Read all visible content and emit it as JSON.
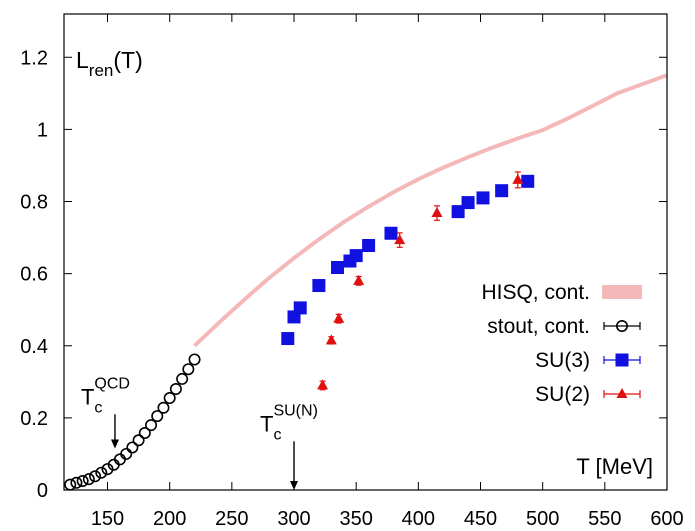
{
  "chart_data": {
    "type": "scatter",
    "title": "",
    "xlabel": "T [MeV]",
    "ylabel": "L_ren(T)",
    "ylabel_parts": {
      "main": "L",
      "sub": "ren",
      "tail": "(T)"
    },
    "xlim": [
      115,
      600
    ],
    "ylim": [
      0,
      1.32
    ],
    "x_ticks": [
      150,
      200,
      250,
      300,
      350,
      400,
      450,
      500,
      550,
      600
    ],
    "y_ticks": [
      {
        "value": 0,
        "label": "0"
      },
      {
        "value": 0.2,
        "label": "0.2"
      },
      {
        "value": 0.4,
        "label": "0.4"
      },
      {
        "value": 0.6,
        "label": "0.6"
      },
      {
        "value": 0.8,
        "label": "0.8"
      },
      {
        "value": 1.0,
        "label": "1"
      },
      {
        "value": 1.2,
        "label": "1.2"
      }
    ],
    "grid": false,
    "legend_position": "center-right",
    "annotations": [
      {
        "main": "T",
        "sub": "c",
        "sup": "QCD",
        "x": 156,
        "y_from": 0.21,
        "y_to": 0.115
      },
      {
        "main": "T",
        "sub": "c",
        "sup": "SU(N)",
        "x": 300,
        "y_from": 0.135,
        "y_to": 0.0
      }
    ],
    "series": [
      {
        "name": "HISQ, cont.",
        "marker": "band",
        "color": "#f5b8b8",
        "x": [
          220,
          240,
          260,
          280,
          300,
          320,
          340,
          360,
          380,
          400,
          420,
          440,
          460,
          480,
          500,
          520,
          540,
          560,
          580,
          600
        ],
        "y": [
          0.4,
          0.465,
          0.528,
          0.588,
          0.643,
          0.695,
          0.743,
          0.786,
          0.826,
          0.862,
          0.894,
          0.923,
          0.95,
          0.975,
          0.998,
          1.03,
          1.065,
          1.1,
          1.125,
          1.15
        ]
      },
      {
        "name": "stout, cont.",
        "marker": "open-circle",
        "color": "#000000",
        "x": [
          120,
          125,
          130,
          135,
          140,
          145,
          150,
          155,
          160,
          165,
          170,
          175,
          180,
          185,
          190,
          195,
          200,
          205,
          210,
          215,
          220
        ],
        "y": [
          0.015,
          0.02,
          0.025,
          0.03,
          0.038,
          0.048,
          0.058,
          0.07,
          0.085,
          0.1,
          0.118,
          0.138,
          0.158,
          0.18,
          0.205,
          0.228,
          0.255,
          0.28,
          0.308,
          0.335,
          0.362
        ]
      },
      {
        "name": "SU(3)",
        "marker": "filled-square",
        "color": "#1010e0",
        "x": [
          295,
          300,
          305,
          320,
          335,
          345,
          350,
          360,
          378,
          432,
          440,
          452,
          467,
          488
        ],
        "y": [
          0.42,
          0.48,
          0.505,
          0.567,
          0.617,
          0.635,
          0.65,
          0.678,
          0.712,
          0.772,
          0.797,
          0.81,
          0.83,
          0.856
        ]
      },
      {
        "name": "SU(2)",
        "marker": "filled-triangle",
        "color": "#e01010",
        "x": [
          323,
          330,
          336,
          352,
          385,
          415,
          480
        ],
        "y": [
          0.29,
          0.415,
          0.475,
          0.58,
          0.693,
          0.768,
          0.86
        ],
        "err": [
          0.012,
          0.01,
          0.012,
          0.012,
          0.02,
          0.02,
          0.022
        ]
      }
    ]
  },
  "colors": {
    "axis": "#000000"
  }
}
